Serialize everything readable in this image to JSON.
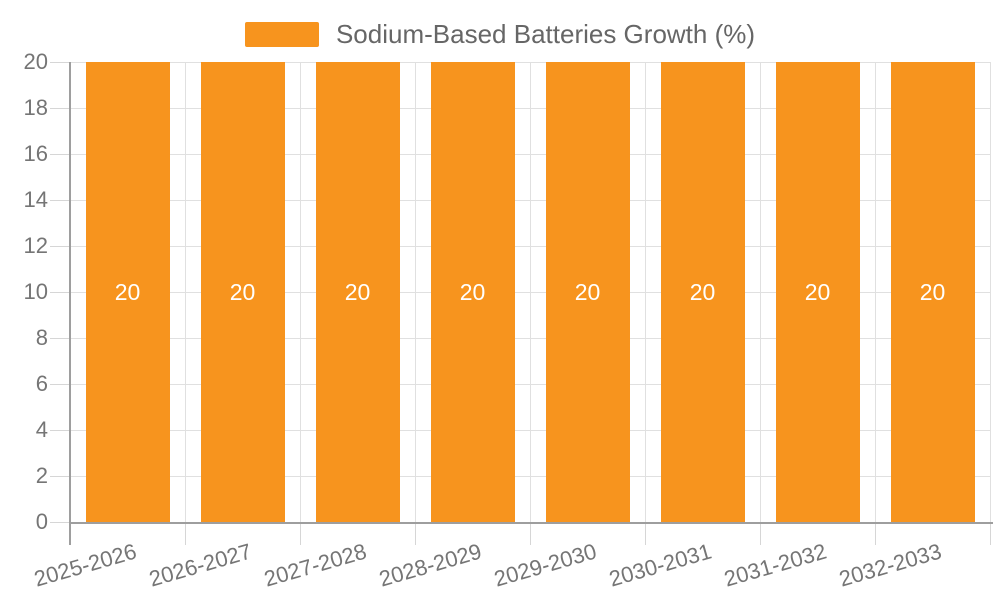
{
  "legend": {
    "label": "Sodium-Based Batteries Growth (%)"
  },
  "chart_data": {
    "type": "bar",
    "title": "",
    "series_label": "Sodium-Based Batteries Growth (%)",
    "categories": [
      "2025-2026",
      "2026-2027",
      "2027-2028",
      "2028-2029",
      "2029-2030",
      "2030-2031",
      "2031-2032",
      "2032-2033"
    ],
    "values": [
      20,
      20,
      20,
      20,
      20,
      20,
      20,
      20
    ],
    "value_labels": [
      "20",
      "20",
      "20",
      "20",
      "20",
      "20",
      "20",
      "20"
    ],
    "xlabel": "",
    "ylabel": "",
    "ylim": [
      0,
      20
    ],
    "yticks": [
      0,
      2,
      4,
      6,
      8,
      10,
      12,
      14,
      16,
      18,
      20
    ],
    "grid": true,
    "legend_position": "top-center",
    "colors": {
      "bar": "#F7941E",
      "value_label": "#FFFFFF",
      "axis_line": "#9E9E9E",
      "grid_line": "#E0E0E0",
      "tick_line": "#D6D6D6",
      "axis_text": "#757575",
      "legend_text": "#666666",
      "background": "#FFFFFF"
    }
  }
}
